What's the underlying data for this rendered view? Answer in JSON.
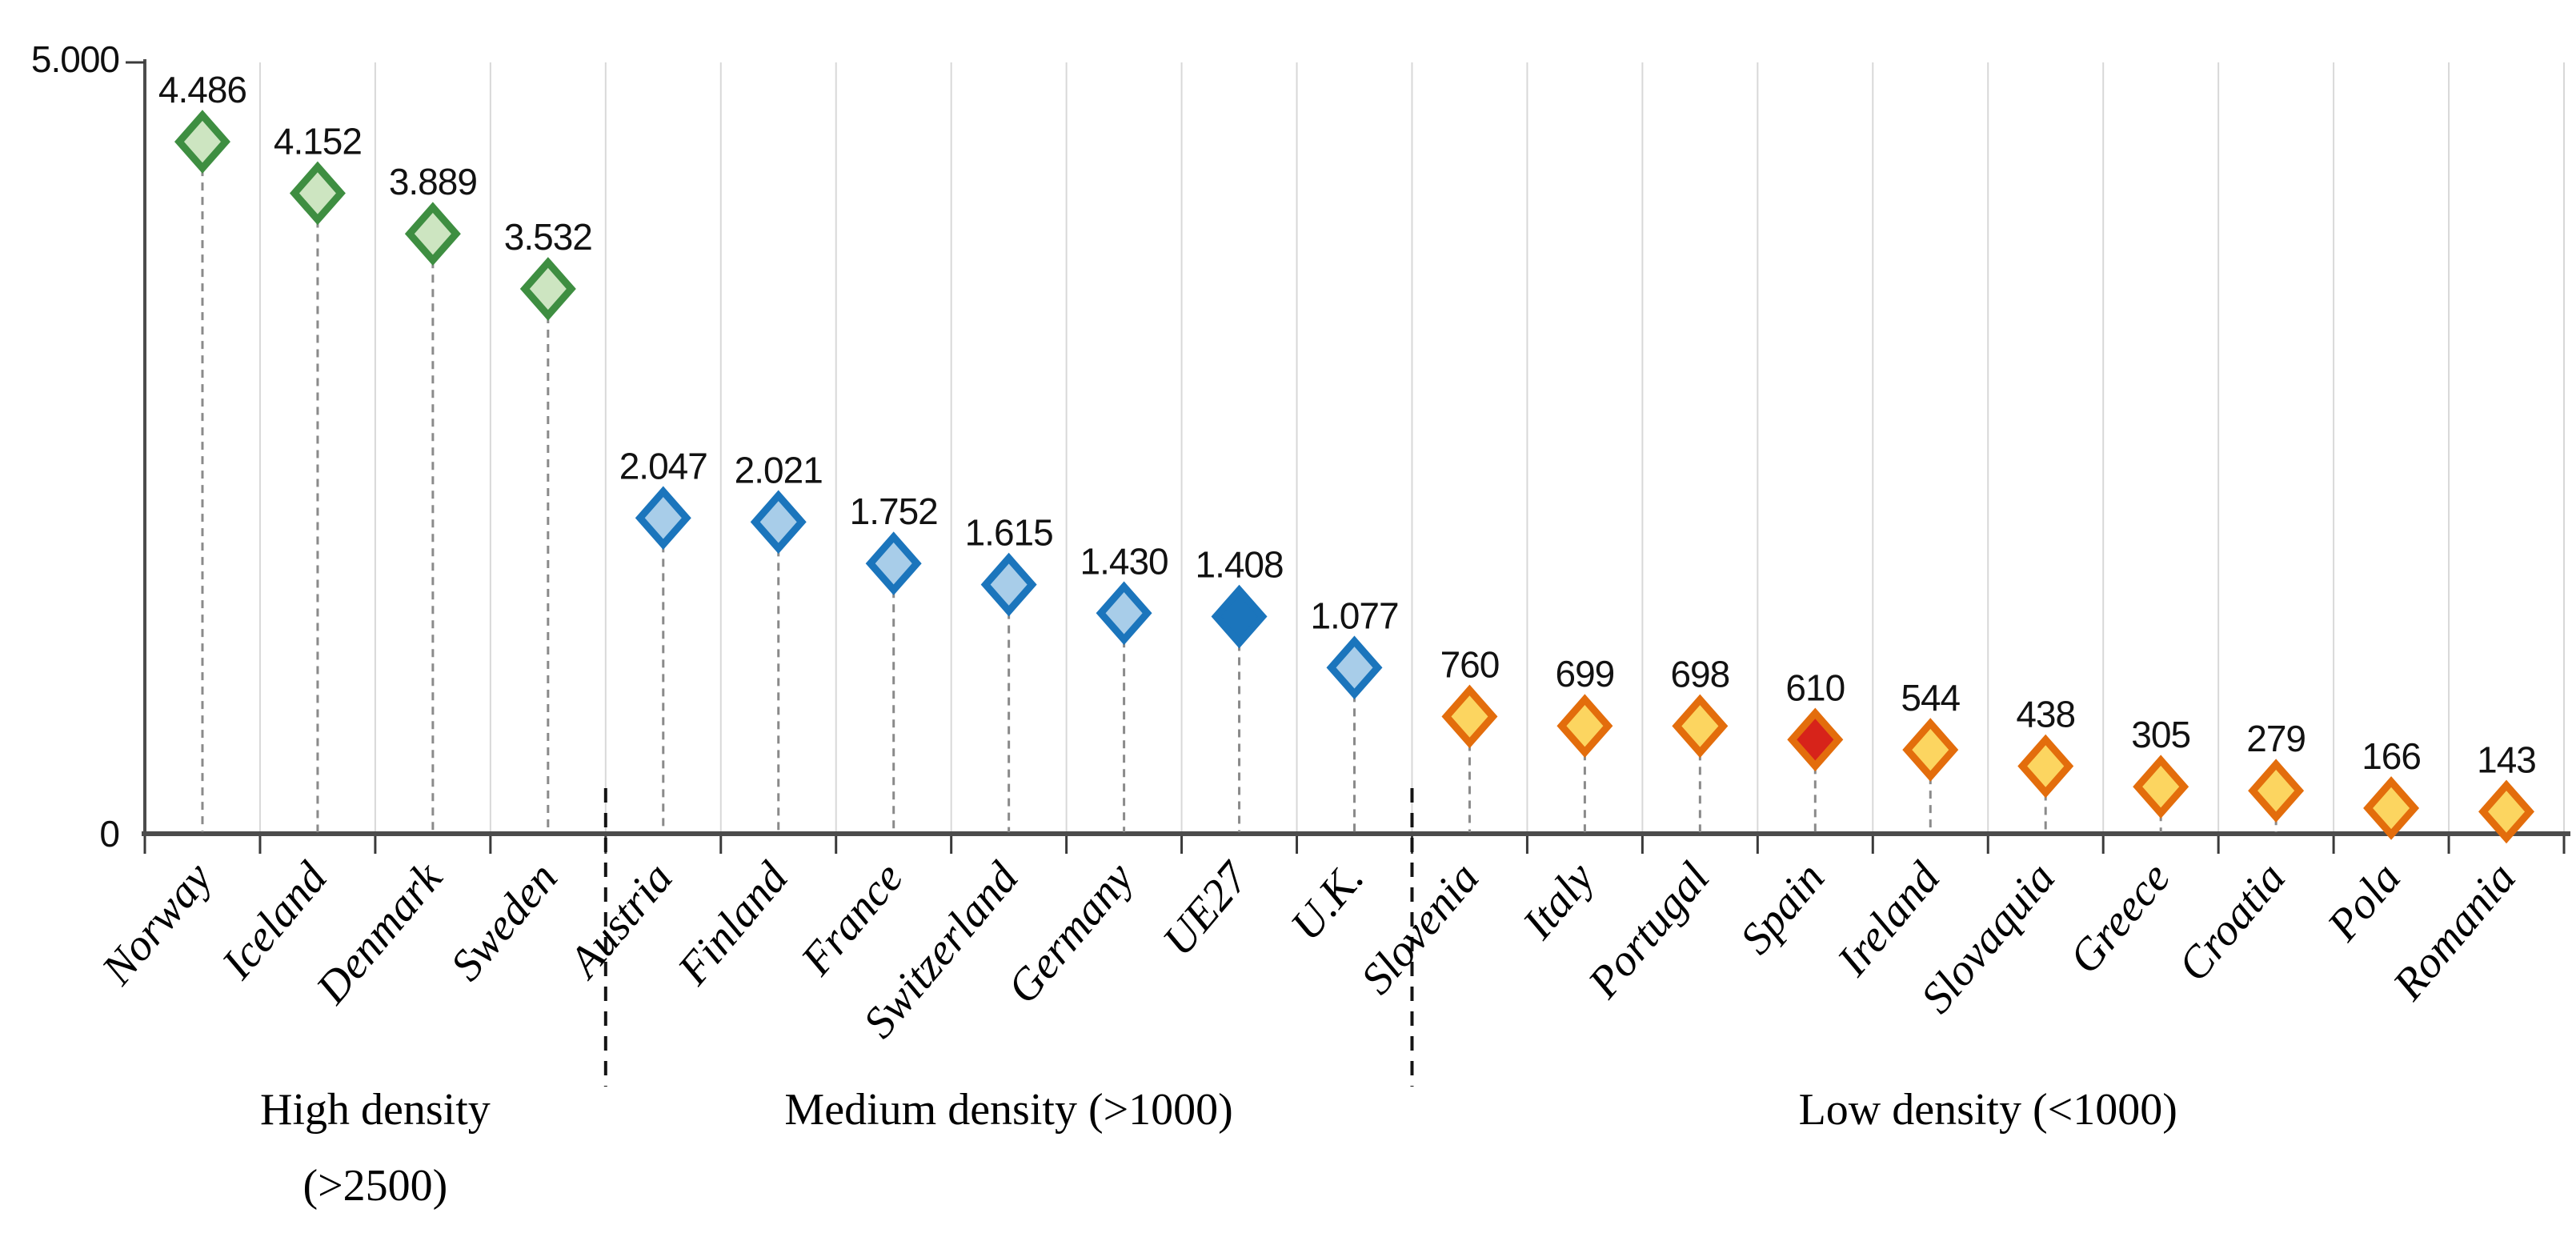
{
  "page": {
    "background": "#ffffff"
  },
  "chart_data": {
    "type": "scatter",
    "marker_shape": "diamond",
    "grid": "vertical category gridlines only",
    "legend_position": "none",
    "y_axis": {
      "min": 0,
      "max": 5000,
      "min_label": "0",
      "max_label": "5.000"
    },
    "categories": [
      "Norway",
      "Iceland",
      "Denmark",
      "Sweden",
      "Austria",
      "Finland",
      "France",
      "Switzerland",
      "Germany",
      "UE27",
      "U.K.",
      "Slovenia",
      "Italy",
      "Portugal",
      "Spain",
      "Ireland",
      "Slovaquia",
      "Greece",
      "Croatia",
      "Pola",
      "Romania"
    ],
    "values": [
      4486,
      4152,
      3889,
      3532,
      2047,
      2021,
      1752,
      1615,
      1430,
      1408,
      1077,
      760,
      699,
      698,
      610,
      544,
      438,
      305,
      279,
      166,
      143
    ],
    "value_labels": [
      "4.486",
      "4.152",
      "3.889",
      "3.532",
      "2.047",
      "2.021",
      "1.752",
      "1.615",
      "1.430",
      "1.408",
      "1.077",
      "760",
      "699",
      "698",
      "610",
      "544",
      "438",
      "305",
      "279",
      "166",
      "143"
    ],
    "marker_styles": [
      "green",
      "green",
      "green",
      "green",
      "blue",
      "blue",
      "blue",
      "blue",
      "blue",
      "blue-solid",
      "blue",
      "orange",
      "orange",
      "orange",
      "red",
      "orange",
      "orange",
      "orange",
      "orange",
      "orange",
      "orange"
    ],
    "style_colors": {
      "green": {
        "stroke": "#3e8e41",
        "fill": "#cde5c1"
      },
      "blue": {
        "stroke": "#1b75bc",
        "fill": "#a8cde9"
      },
      "blue-solid": {
        "stroke": "#1b75bc",
        "fill": "#1b75bc"
      },
      "orange": {
        "stroke": "#e36d0c",
        "fill": "#fcd560"
      },
      "red": {
        "stroke": "#e36d0c",
        "fill": "#d7231a"
      }
    },
    "groups": [
      {
        "label": "High density",
        "sublabel": "(>2500)",
        "from": 0,
        "to": 3
      },
      {
        "label": "Medium density (>1000)",
        "sublabel": "",
        "from": 4,
        "to": 10
      },
      {
        "label": "Low density (<1000)",
        "sublabel": "",
        "from": 11,
        "to": 20
      }
    ],
    "separators_after_index": [
      3,
      10
    ],
    "stem_style": "gray dashed",
    "separator_style": "black dashed"
  }
}
